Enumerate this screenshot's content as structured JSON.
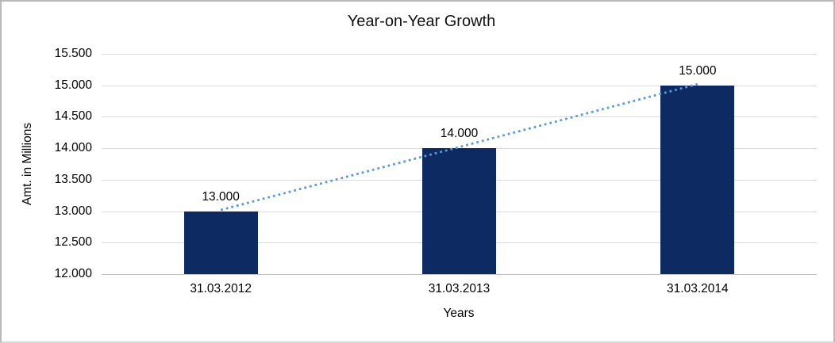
{
  "chart_data": {
    "type": "bar",
    "title": "Year-on-Year Growth",
    "xlabel": "Years",
    "ylabel": "Amt. in Millions",
    "categories": [
      "31.03.2012",
      "31.03.2013",
      "31.03.2014"
    ],
    "values": [
      13000,
      14000,
      15000
    ],
    "data_labels": [
      "13.000",
      "14.000",
      "15.000"
    ],
    "ylim": [
      12000,
      15500
    ],
    "ytick_step": 500,
    "ytick_labels": [
      "12.000",
      "12.500",
      "13.000",
      "13.500",
      "14.000",
      "14.500",
      "15.000",
      "15.500"
    ],
    "grid": true,
    "legend": false,
    "colors": {
      "bar": "#0d2a63",
      "trendline": "#5b9bd5",
      "gridline": "#d9d9d9",
      "axis_line": "#bfbfbf",
      "text": "#000000"
    },
    "trendline": {
      "type": "linear",
      "style": "dotted",
      "from_category_index": 0,
      "to_category_index": 2
    }
  }
}
